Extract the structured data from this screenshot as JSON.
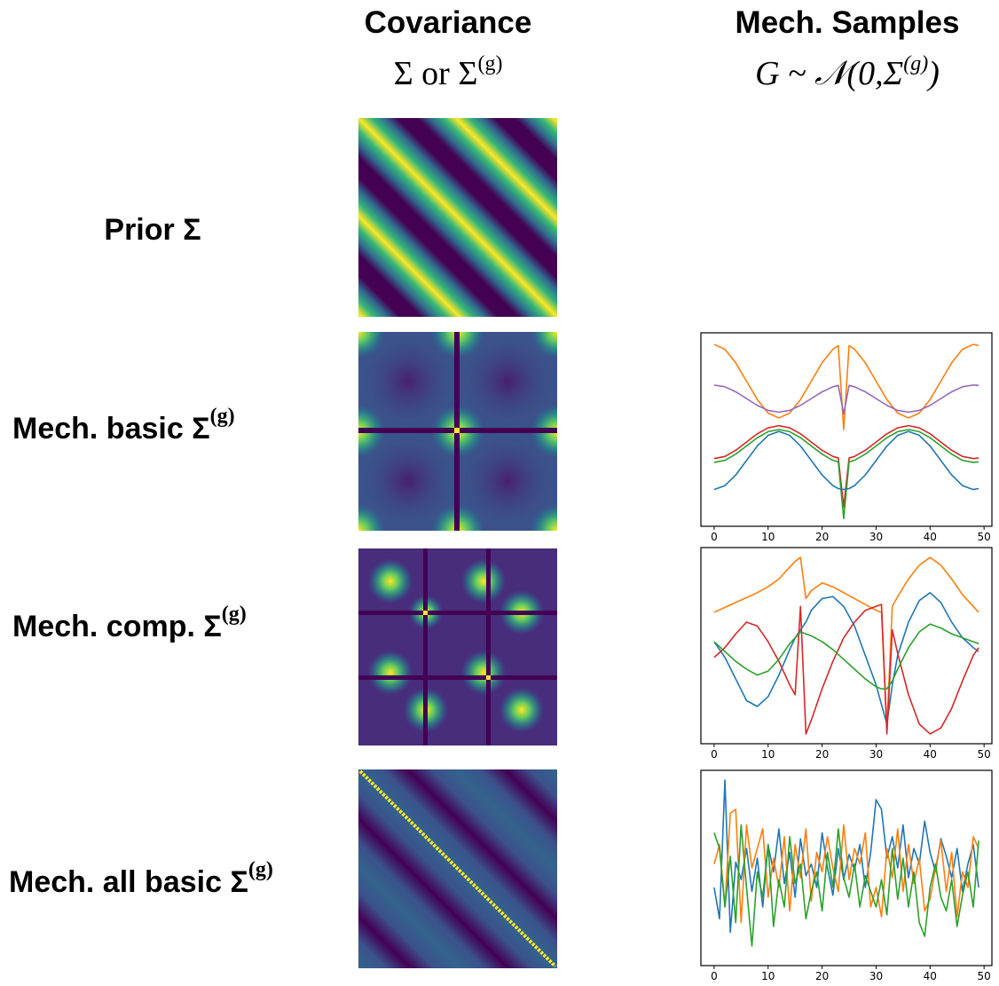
{
  "header": {
    "covariance": "Covariance",
    "covariance_symbol": {
      "text": "Σ or Σ",
      "sup": "(g)"
    },
    "samples": "Mech. Samples",
    "samples_symbol": {
      "text": "G ~ 𝒩(0,Σ",
      "sup": "(g)",
      "tail": ")"
    }
  },
  "rows": [
    {
      "label": "Prior Σ"
    },
    {
      "label": "Mech. basic Σ",
      "sup": "(g)"
    },
    {
      "label": "Mech. comp. Σ",
      "sup": "(g)"
    },
    {
      "label": "Mech. all basic Σ",
      "sup": "(g)"
    }
  ],
  "chart_data": [
    {
      "type": "line",
      "xlim": [
        -2.45,
        51.45
      ],
      "xticks": [
        0,
        10,
        20,
        30,
        40,
        50
      ],
      "ylim": [
        0,
        100
      ],
      "x": [
        0,
        2,
        4,
        6,
        8,
        10,
        12,
        14,
        16,
        18,
        20,
        22,
        23,
        24,
        25,
        26,
        28,
        30,
        32,
        34,
        36,
        38,
        40,
        42,
        44,
        46,
        48,
        49
      ],
      "series": [
        {
          "color": "#ff7f0e",
          "values": [
            94,
            91.5,
            84.5,
            75,
            65.5,
            58.5,
            56,
            58.5,
            65.5,
            75,
            84.5,
            91.5,
            93.4,
            50,
            93.4,
            91.5,
            84.5,
            75,
            65.5,
            58.5,
            56,
            58.5,
            65.5,
            75,
            84.5,
            91.5,
            94,
            93.4
          ]
        },
        {
          "color": "#9467bd",
          "values": [
            73,
            72.1,
            69.5,
            66,
            62.5,
            59.9,
            59,
            59.9,
            62.5,
            66,
            69.5,
            72.1,
            72.8,
            58,
            72.8,
            72.1,
            69.5,
            66,
            62.5,
            59.9,
            59,
            59.9,
            62.5,
            66,
            69.5,
            72.1,
            73,
            72.8
          ]
        },
        {
          "color": "#d62728",
          "values": [
            35,
            36.1,
            39.3,
            43.5,
            47.8,
            50.9,
            52,
            50.9,
            47.8,
            43.5,
            39.3,
            36.1,
            35.3,
            10,
            35.3,
            36.1,
            39.3,
            43.5,
            47.8,
            50.9,
            52,
            50.9,
            47.8,
            43.5,
            39.3,
            36.1,
            35,
            35.3
          ]
        },
        {
          "color": "#2ca02c",
          "values": [
            33,
            34.1,
            37.3,
            41.5,
            45.8,
            48.9,
            50,
            48.9,
            45.8,
            41.5,
            37.3,
            34.1,
            33.3,
            4,
            33.3,
            34.1,
            37.3,
            41.5,
            45.8,
            48.9,
            50,
            48.9,
            45.8,
            41.5,
            37.3,
            34.1,
            33,
            33.3
          ]
        },
        {
          "color": "#1f77b4",
          "values": [
            19,
            21,
            26.5,
            34,
            41.5,
            47,
            49,
            47,
            41.5,
            34,
            26.5,
            21,
            19.5,
            19,
            19.5,
            21,
            26.5,
            34,
            41.5,
            47,
            49,
            47,
            41.5,
            34,
            26.5,
            21,
            19,
            19.5
          ]
        }
      ]
    },
    {
      "type": "line",
      "xlim": [
        -2.45,
        51.45
      ],
      "xticks": [
        0,
        10,
        20,
        30,
        40,
        50
      ],
      "ylim": [
        0,
        100
      ],
      "x": [
        0,
        2,
        4,
        6,
        8,
        10,
        12,
        14,
        15,
        16,
        17,
        18,
        20,
        22,
        24,
        26,
        28,
        30,
        31,
        32,
        33,
        34,
        36,
        38,
        40,
        42,
        44,
        46,
        48,
        49
      ],
      "series": [
        {
          "color": "#ff7f0e",
          "values": [
            67,
            69.5,
            72,
            74.5,
            77,
            80,
            84,
            90,
            93,
            95,
            74,
            78,
            82,
            80,
            77,
            74,
            71,
            68,
            67,
            8,
            70,
            75,
            84,
            91,
            95,
            91,
            84,
            76,
            70,
            67
          ]
        },
        {
          "color": "#1f77b4",
          "values": [
            52,
            44,
            33,
            22,
            19,
            24,
            35,
            48,
            54,
            58,
            62,
            68,
            74,
            75,
            70,
            60,
            45,
            30,
            20,
            10,
            30,
            45,
            62,
            73,
            77,
            72,
            62,
            54,
            49,
            47
          ]
        },
        {
          "color": "#d62728",
          "values": [
            44,
            49,
            56,
            62,
            60,
            52,
            42,
            30,
            25,
            70,
            5,
            12,
            28,
            42,
            54,
            62,
            68,
            70,
            71,
            5,
            58,
            46,
            25,
            10,
            5,
            8,
            18,
            32,
            45,
            49
          ]
        },
        {
          "color": "#2ca02c",
          "values": [
            52,
            47,
            42,
            38,
            35,
            37,
            43,
            51,
            54,
            57,
            56,
            55,
            52,
            48,
            43,
            38,
            33,
            29,
            28,
            28,
            32,
            38,
            49,
            57,
            61,
            59,
            56,
            54,
            52,
            51
          ]
        }
      ]
    },
    {
      "type": "line",
      "xlim": [
        -2.45,
        51.45
      ],
      "xticks": [
        0,
        10,
        20,
        30,
        40,
        50
      ],
      "ylim": [
        0,
        100
      ],
      "x": [
        0,
        1,
        2,
        3,
        4,
        5,
        6,
        7,
        8,
        9,
        10,
        11,
        12,
        13,
        14,
        15,
        16,
        17,
        18,
        19,
        20,
        21,
        22,
        23,
        24,
        25,
        26,
        27,
        28,
        29,
        30,
        31,
        32,
        33,
        34,
        35,
        36,
        37,
        38,
        39,
        40,
        41,
        42,
        43,
        44,
        45,
        46,
        47,
        48,
        49
      ],
      "series": [
        {
          "color": "#1f77b4",
          "values": [
            40,
            24,
            95,
            17,
            53,
            44,
            60,
            38,
            55,
            30,
            62,
            48,
            70,
            42,
            58,
            35,
            65,
            46,
            52,
            40,
            68,
            50,
            36,
            60,
            44,
            57,
            49,
            62,
            40,
            58,
            85,
            80,
            55,
            66,
            50,
            72,
            45,
            60,
            52,
            74,
            58,
            48,
            65,
            56,
            45,
            60,
            38,
            52,
            62,
            40
          ]
        },
        {
          "color": "#ff7f0e",
          "values": [
            52,
            62,
            30,
            78,
            80,
            22,
            72,
            50,
            60,
            70,
            35,
            55,
            40,
            66,
            28,
            62,
            45,
            70,
            33,
            58,
            48,
            66,
            50,
            38,
            72,
            44,
            60,
            52,
            68,
            30,
            40,
            25,
            60,
            45,
            70,
            38,
            62,
            42,
            55,
            28,
            34,
            50,
            64,
            38,
            58,
            25,
            48,
            40,
            66,
            60
          ]
        },
        {
          "color": "#2ca02c",
          "values": [
            68,
            60,
            30,
            56,
            22,
            72,
            40,
            10,
            48,
            35,
            62,
            20,
            44,
            30,
            66,
            42,
            52,
            24,
            38,
            48,
            28,
            58,
            40,
            70,
            45,
            35,
            52,
            30,
            46,
            38,
            30,
            44,
            26,
            60,
            34,
            55,
            30,
            48,
            22,
            15,
            40,
            52,
            35,
            28,
            44,
            20,
            36,
            48,
            30,
            64
          ]
        }
      ]
    }
  ]
}
